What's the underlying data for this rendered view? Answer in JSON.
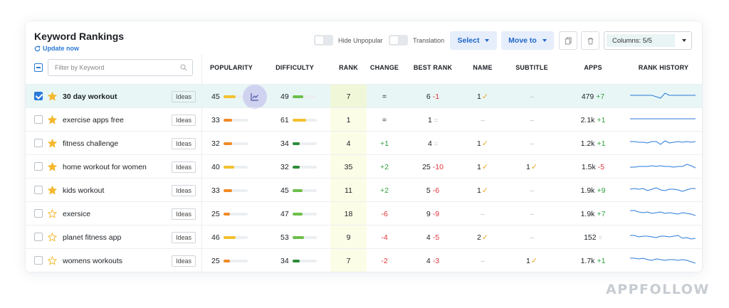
{
  "header": {
    "title": "Keyword Rankings",
    "update_label": "Update now",
    "hide_unpopular_label": "Hide Unpopular",
    "translation_label": "Translation",
    "select_label": "Select",
    "move_to_label": "Move to",
    "columns_label": "Columns: 5/5"
  },
  "filter": {
    "placeholder": "Filter by Keyword"
  },
  "columns": [
    "POPULARITY",
    "DIFFICULTY",
    "RANK",
    "CHANGE",
    "BEST RANK",
    "NAME",
    "SUBTITLE",
    "APPS",
    "RANK HISTORY"
  ],
  "ideas_label": "Ideas",
  "rows": [
    {
      "keyword": "30 day workout",
      "selected": true,
      "starred": true,
      "popularity": "45",
      "popularity_level": 0.45,
      "difficulty": "49",
      "difficulty_level": 0.49,
      "rank": "7",
      "change": "=",
      "best_rank": "6",
      "best_delta": "-1",
      "name": "1",
      "name_check": "✓",
      "subtitle": "–",
      "subtitle_check": "",
      "apps": "479",
      "apps_delta": "+7",
      "spark": [
        8,
        8,
        8,
        8,
        8,
        8,
        10,
        12,
        5,
        8,
        8,
        8,
        8,
        8,
        8,
        8
      ]
    },
    {
      "keyword": "exercise apps free",
      "selected": false,
      "starred": true,
      "popularity": "33",
      "popularity_level": 0.33,
      "difficulty": "61",
      "difficulty_level": 0.61,
      "rank": "1",
      "change": "=",
      "best_rank": "1",
      "best_delta": "=",
      "name": "–",
      "name_check": "",
      "subtitle": "–",
      "subtitle_check": "",
      "apps": "2.1k",
      "apps_delta": "+1",
      "spark": [
        8,
        8,
        8,
        8,
        8,
        8,
        8,
        8,
        8,
        8,
        8,
        8,
        8,
        8,
        8,
        8
      ]
    },
    {
      "keyword": "fitness challenge",
      "selected": false,
      "starred": true,
      "popularity": "32",
      "popularity_level": 0.32,
      "difficulty": "34",
      "difficulty_level": 0.34,
      "rank": "4",
      "change": "+1",
      "best_rank": "4",
      "best_delta": "=",
      "name": "1",
      "name_check": "✓",
      "subtitle": "–",
      "subtitle_check": "",
      "apps": "1.2k",
      "apps_delta": "+1",
      "spark": [
        7,
        7,
        8,
        8,
        9,
        7,
        7,
        11,
        6,
        9,
        8,
        7,
        8,
        7,
        8,
        7
      ]
    },
    {
      "keyword": "home workout for women",
      "selected": false,
      "starred": true,
      "popularity": "40",
      "popularity_level": 0.4,
      "difficulty": "32",
      "difficulty_level": 0.32,
      "rank": "35",
      "change": "+2",
      "best_rank": "25",
      "best_delta": "-10",
      "name": "1",
      "name_check": "✓",
      "subtitle": "1",
      "subtitle_check": "✓",
      "apps": "1.5k",
      "apps_delta": "-5",
      "spark": [
        10,
        10,
        9,
        9,
        9,
        8,
        9,
        8,
        9,
        9,
        10,
        9,
        9,
        6,
        8,
        11
      ]
    },
    {
      "keyword": "kids workout",
      "selected": false,
      "starred": true,
      "popularity": "33",
      "popularity_level": 0.33,
      "difficulty": "45",
      "difficulty_level": 0.45,
      "rank": "11",
      "change": "+2",
      "best_rank": "5",
      "best_delta": "-6",
      "name": "1",
      "name_check": "✓",
      "subtitle": "–",
      "subtitle_check": "",
      "apps": "1.9k",
      "apps_delta": "+9",
      "spark": [
        8,
        7,
        8,
        7,
        10,
        8,
        6,
        9,
        10,
        8,
        8,
        9,
        11,
        9,
        7,
        7
      ]
    },
    {
      "keyword": "exersice",
      "selected": false,
      "starred": false,
      "popularity": "25",
      "popularity_level": 0.25,
      "difficulty": "47",
      "difficulty_level": 0.47,
      "rank": "18",
      "change": "-6",
      "best_rank": "9",
      "best_delta": "-9",
      "name": "–",
      "name_check": "",
      "subtitle": "–",
      "subtitle_check": "",
      "apps": "1.9k",
      "apps_delta": "+7",
      "spark": [
        5,
        5,
        7,
        8,
        7,
        9,
        8,
        7,
        9,
        8,
        9,
        10,
        8,
        9,
        10,
        12
      ]
    },
    {
      "keyword": "planet fitness app",
      "selected": false,
      "starred": false,
      "popularity": "46",
      "popularity_level": 0.46,
      "difficulty": "53",
      "difficulty_level": 0.53,
      "rank": "9",
      "change": "-4",
      "best_rank": "4",
      "best_delta": "-5",
      "name": "2",
      "name_check": "✓",
      "subtitle": "–",
      "subtitle_check": "",
      "apps": "152",
      "apps_delta": "=",
      "spark": [
        7,
        7,
        9,
        8,
        8,
        9,
        10,
        8,
        8,
        9,
        8,
        7,
        11,
        10,
        12,
        11
      ]
    },
    {
      "keyword": "womens workouts",
      "selected": false,
      "starred": false,
      "popularity": "25",
      "popularity_level": 0.25,
      "difficulty": "34",
      "difficulty_level": 0.34,
      "rank": "7",
      "change": "-2",
      "best_rank": "4",
      "best_delta": "-3",
      "name": "–",
      "name_check": "",
      "subtitle": "1",
      "subtitle_check": "✓",
      "apps": "1.7k",
      "apps_delta": "+1",
      "spark": [
        6,
        6,
        7,
        6,
        8,
        9,
        7,
        8,
        9,
        8,
        8,
        9,
        8,
        9,
        11,
        13
      ]
    }
  ],
  "brand": "APPFOLLOW",
  "colors": {
    "accent": "#2a7ad8",
    "star": "#f5b82e",
    "bar_orange": "#f08a24",
    "bar_yellow": "#f2c12e",
    "bar_green": "#6cbf4a",
    "bar_darkgreen": "#2e8b3a",
    "positive": "#2e9e3c",
    "negative": "#e0343c",
    "spark": "#2a7ad8"
  },
  "icons": [
    "refresh-icon",
    "search-icon",
    "copy-icon",
    "trash-icon",
    "chart-icon",
    "star-icon",
    "check-icon"
  ]
}
